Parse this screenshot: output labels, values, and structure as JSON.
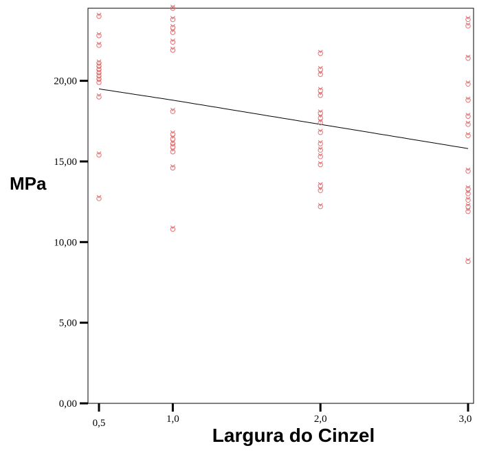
{
  "chart_data": {
    "type": "scatter",
    "title": "",
    "ylabel": "MPa",
    "xlabel": "Largura do Cinzel",
    "xlim": [
      0.5,
      3.0
    ],
    "ylim": [
      0,
      24.5
    ],
    "x_ticks": [
      0.5,
      1.0,
      2.0,
      3.0
    ],
    "x_tick_labels": [
      "0,5",
      "1,0",
      "2,0",
      "3,0"
    ],
    "y_ticks": [
      0,
      5,
      10,
      15,
      20
    ],
    "y_tick_labels": [
      "0,00",
      "5,00",
      "10,00",
      "15,00",
      "20,00"
    ],
    "grid": false,
    "marker_color": "#e07070",
    "line_color": "#000000",
    "points": [
      {
        "x": 0.5,
        "y": 24.0
      },
      {
        "x": 0.5,
        "y": 22.8
      },
      {
        "x": 0.5,
        "y": 22.2
      },
      {
        "x": 0.5,
        "y": 21.1
      },
      {
        "x": 0.5,
        "y": 20.9
      },
      {
        "x": 0.5,
        "y": 20.7
      },
      {
        "x": 0.5,
        "y": 20.5
      },
      {
        "x": 0.5,
        "y": 20.3
      },
      {
        "x": 0.5,
        "y": 20.1
      },
      {
        "x": 0.5,
        "y": 19.9
      },
      {
        "x": 0.5,
        "y": 19.0
      },
      {
        "x": 0.5,
        "y": 15.4
      },
      {
        "x": 0.5,
        "y": 12.7
      },
      {
        "x": 1.0,
        "y": 24.5
      },
      {
        "x": 1.0,
        "y": 23.8
      },
      {
        "x": 1.0,
        "y": 23.3
      },
      {
        "x": 1.0,
        "y": 23.0
      },
      {
        "x": 1.0,
        "y": 22.4
      },
      {
        "x": 1.0,
        "y": 21.9
      },
      {
        "x": 1.0,
        "y": 18.1
      },
      {
        "x": 1.0,
        "y": 16.7
      },
      {
        "x": 1.0,
        "y": 16.4
      },
      {
        "x": 1.0,
        "y": 16.1
      },
      {
        "x": 1.0,
        "y": 15.9
      },
      {
        "x": 1.0,
        "y": 15.6
      },
      {
        "x": 1.0,
        "y": 14.6
      },
      {
        "x": 1.0,
        "y": 10.8
      },
      {
        "x": 2.0,
        "y": 21.7
      },
      {
        "x": 2.0,
        "y": 20.7
      },
      {
        "x": 2.0,
        "y": 20.4
      },
      {
        "x": 2.0,
        "y": 19.4
      },
      {
        "x": 2.0,
        "y": 19.1
      },
      {
        "x": 2.0,
        "y": 18.0
      },
      {
        "x": 2.0,
        "y": 17.7
      },
      {
        "x": 2.0,
        "y": 17.4
      },
      {
        "x": 2.0,
        "y": 16.8
      },
      {
        "x": 2.0,
        "y": 16.1
      },
      {
        "x": 2.0,
        "y": 15.7
      },
      {
        "x": 2.0,
        "y": 15.3
      },
      {
        "x": 2.0,
        "y": 14.8
      },
      {
        "x": 2.0,
        "y": 13.5
      },
      {
        "x": 2.0,
        "y": 13.2
      },
      {
        "x": 2.0,
        "y": 12.2
      },
      {
        "x": 3.0,
        "y": 23.8
      },
      {
        "x": 3.0,
        "y": 23.4
      },
      {
        "x": 3.0,
        "y": 21.4
      },
      {
        "x": 3.0,
        "y": 19.8
      },
      {
        "x": 3.0,
        "y": 18.8
      },
      {
        "x": 3.0,
        "y": 17.8
      },
      {
        "x": 3.0,
        "y": 17.3
      },
      {
        "x": 3.0,
        "y": 16.6
      },
      {
        "x": 3.0,
        "y": 14.4
      },
      {
        "x": 3.0,
        "y": 13.3
      },
      {
        "x": 3.0,
        "y": 13.0
      },
      {
        "x": 3.0,
        "y": 12.6
      },
      {
        "x": 3.0,
        "y": 12.2
      },
      {
        "x": 3.0,
        "y": 11.9
      },
      {
        "x": 3.0,
        "y": 8.8
      }
    ],
    "fit_line": [
      {
        "x": 0.5,
        "y": 19.5
      },
      {
        "x": 1.0,
        "y": 18.8
      },
      {
        "x": 2.0,
        "y": 17.3
      },
      {
        "x": 3.0,
        "y": 15.8
      }
    ]
  }
}
